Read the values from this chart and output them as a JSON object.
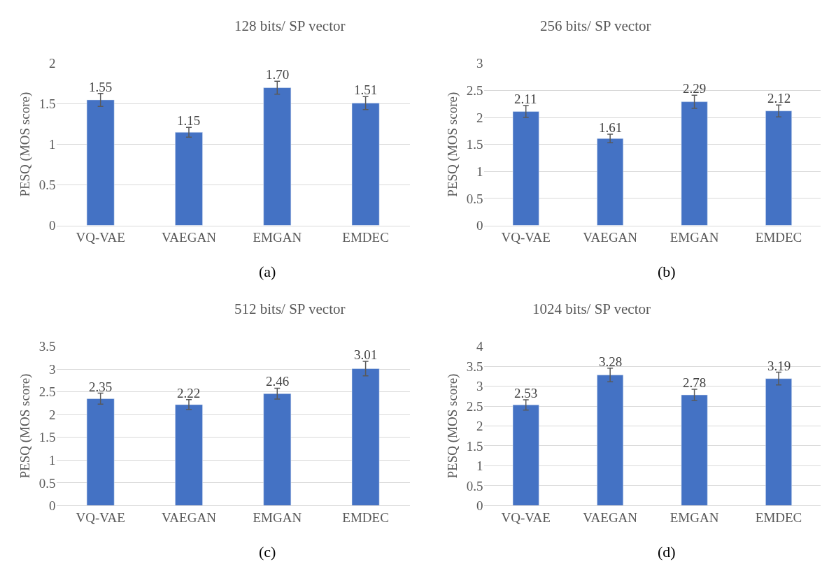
{
  "chart_data": [
    {
      "type": "bar",
      "title": "128 bits/ SP vector",
      "ylabel": "PESQ (MOS score)",
      "categories": [
        "VQ-VAE",
        "VAEGAN",
        "EMGAN",
        "EMDEC"
      ],
      "values": [
        1.55,
        1.15,
        1.7,
        1.51
      ],
      "value_labels": [
        "1.55",
        "1.15",
        "1.70",
        "1.51"
      ],
      "errors": [
        0.08,
        0.06,
        0.08,
        0.08
      ],
      "color": "#4472c4",
      "ylim": [
        0,
        2
      ],
      "yticks": [
        0,
        0.5,
        1,
        1.5,
        2
      ],
      "grid": "y",
      "annotations": [
        "(a)"
      ]
    },
    {
      "type": "bar",
      "title": "256 bits/ SP vector",
      "ylabel": "PESQ (MOS score)",
      "categories": [
        "VQ-VAE",
        "VAEGAN",
        "EMGAN",
        "EMDEC"
      ],
      "values": [
        2.11,
        1.61,
        2.29,
        2.12
      ],
      "value_labels": [
        "2.11",
        "1.61",
        "2.29",
        "2.12"
      ],
      "errors": [
        0.11,
        0.08,
        0.12,
        0.11
      ],
      "color": "#4472c4",
      "ylim": [
        0,
        3
      ],
      "yticks": [
        0,
        0.5,
        1,
        1.5,
        2,
        2.5,
        3
      ],
      "grid": "y",
      "annotations": [
        "(b)"
      ]
    },
    {
      "type": "bar",
      "title": "512 bits/ SP vector",
      "ylabel": "PESQ (MOS score)",
      "categories": [
        "VQ-VAE",
        "VAEGAN",
        "EMGAN",
        "EMDEC"
      ],
      "values": [
        2.35,
        2.22,
        2.46,
        3.01
      ],
      "value_labels": [
        "2.35",
        "2.22",
        "2.46",
        "3.01"
      ],
      "errors": [
        0.12,
        0.11,
        0.12,
        0.16
      ],
      "color": "#4472c4",
      "ylim": [
        0,
        3.5
      ],
      "yticks": [
        0,
        0.5,
        1,
        1.5,
        2,
        2.5,
        3,
        3.5
      ],
      "grid": "y",
      "annotations": [
        "(c)"
      ]
    },
    {
      "type": "bar",
      "title": "1024 bits/ SP vector",
      "ylabel": "PESQ (MOS score)",
      "categories": [
        "VQ-VAE",
        "VAEGAN",
        "EMGAN",
        "EMDEC"
      ],
      "values": [
        2.53,
        3.28,
        2.78,
        3.19
      ],
      "value_labels": [
        "2.53",
        "3.28",
        "2.78",
        "3.19"
      ],
      "errors": [
        0.13,
        0.17,
        0.14,
        0.16
      ],
      "color": "#4472c4",
      "ylim": [
        0,
        4
      ],
      "yticks": [
        0,
        0.5,
        1,
        1.5,
        2,
        2.5,
        3,
        3.5,
        4
      ],
      "grid": "y",
      "annotations": [
        "(d)"
      ]
    }
  ]
}
